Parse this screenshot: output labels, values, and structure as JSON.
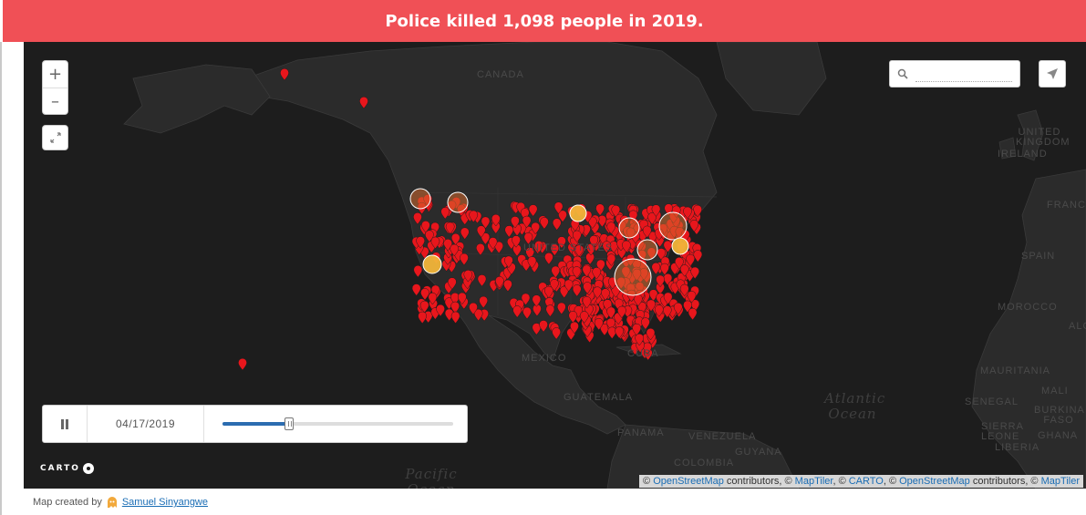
{
  "header": {
    "title": "Police killed 1,098 people in 2019."
  },
  "map": {
    "country_labels": [
      "CANADA",
      "UNITED STATES",
      "MEXICO",
      "GUATEMALA",
      "PANAMA",
      "VENEZUELA",
      "COLOMBIA",
      "GUYANA",
      "CUBA",
      "UNITED KINGDOM",
      "IRELAND",
      "FRANCE",
      "SPAIN",
      "MOROCCO",
      "ALGERIA",
      "MAURITANIA",
      "MALI",
      "SENEGAL",
      "BURKINA FASO",
      "SIERRA LEONE",
      "LIBERIA",
      "GHANA"
    ],
    "ocean_labels": [
      "Atlantic Ocean",
      "Pacific Ocean"
    ],
    "colors": {
      "marker": "#e8161c",
      "cluster": "#f2b53a",
      "background": "#1d1d1d",
      "land": "#2b2b2b",
      "banner": "#f05056"
    }
  },
  "controls": {
    "zoom_in": "+",
    "zoom_out": "–",
    "fullscreen_icon": "expand-icon",
    "search": {
      "placeholder": "",
      "icon": "search-icon"
    },
    "locate_icon": "paper-plane-icon"
  },
  "timeline": {
    "date": "04/17/2019",
    "progress": 0.29,
    "play_state_icon": "pause-icon"
  },
  "branding": {
    "carto": "CARTO"
  },
  "attribution": {
    "sep1": "©",
    "osm": "OpenStreetMap",
    "contrib": "contributors, ©",
    "maptiler": "MapTiler",
    "sep2": ", ©",
    "carto": "CARTO",
    "sep3": ", ©",
    "osm2": "OpenStreetMap",
    "contrib2": "contributors, ©",
    "maptiler2": "MapTiler"
  },
  "credit": {
    "prefix": "Map created by",
    "author": "Samuel Sinyangwe"
  }
}
